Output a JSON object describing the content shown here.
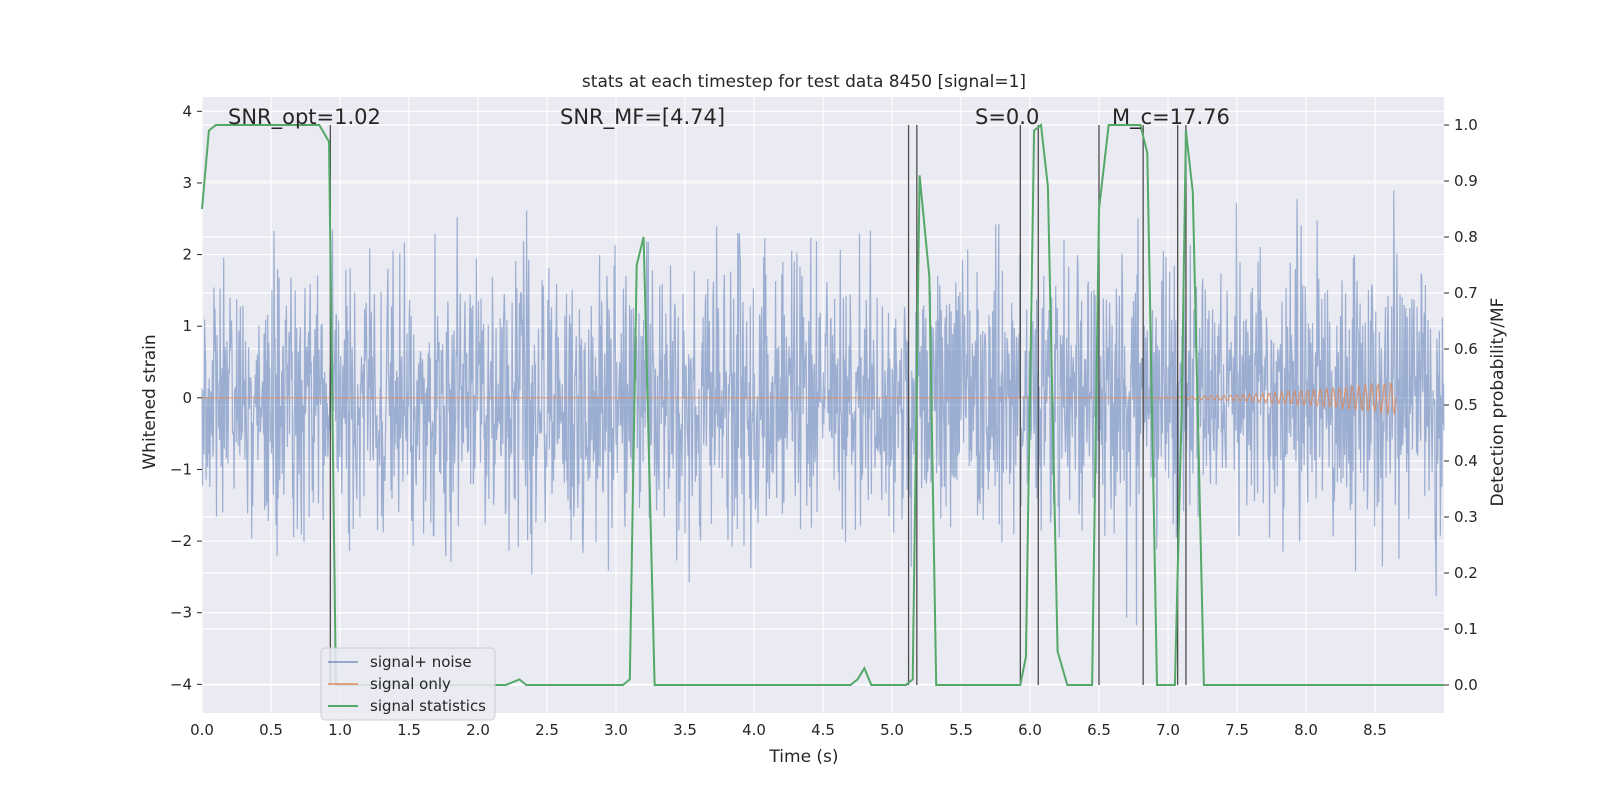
{
  "chart_data": {
    "type": "line",
    "title": "stats at each timestep for test data 8450 [signal=1]",
    "xlabel": "Time (s)",
    "ylabel_left": "Whitened strain",
    "ylabel_right": "Detection probability/MF",
    "xlim": [
      0,
      9
    ],
    "ylim_left": [
      -4.4,
      4.2
    ],
    "ylim_right": [
      -0.05,
      1.05
    ],
    "xticks": [
      "0.0",
      "0.5",
      "1.0",
      "1.5",
      "2.0",
      "2.5",
      "3.0",
      "3.5",
      "4.0",
      "4.5",
      "5.0",
      "5.5",
      "6.0",
      "6.5",
      "7.0",
      "7.5",
      "8.0",
      "8.5"
    ],
    "yticks_left": [
      "−4",
      "−3",
      "−2",
      "−1",
      "0",
      "1",
      "2",
      "3",
      "4"
    ],
    "yticks_right": [
      "0.0",
      "0.1",
      "0.2",
      "0.3",
      "0.4",
      "0.5",
      "0.6",
      "0.7",
      "0.8",
      "0.9",
      "1.0"
    ],
    "grid": true,
    "legend_position": "lower-left",
    "annotations": [
      {
        "id": "snr-opt",
        "text": "SNR_opt=1.02",
        "x": 0.2
      },
      {
        "id": "snr-mf",
        "text": "SNR_MF=[4.74]",
        "x": 2.6
      },
      {
        "id": "s-stat",
        "text": "S=0.0",
        "x": 5.6
      },
      {
        "id": "chirp-mass",
        "text": "M_c=17.76",
        "x": 6.6
      }
    ],
    "series": [
      {
        "name": "signal+ noise",
        "axis": "left",
        "color": "#4c72b0",
        "alpha": 0.5,
        "description_amplitude_std": 1.0,
        "range": [
          0,
          9
        ]
      },
      {
        "name": "signal only",
        "axis": "left",
        "color": "#dd8452",
        "chirp_end": 8.65,
        "chirp_max_amplitude": 0.25
      },
      {
        "name": "signal statistics",
        "axis": "right",
        "color": "#55a868",
        "points": [
          [
            0,
            0.85
          ],
          [
            0.05,
            0.99
          ],
          [
            0.1,
            1.0
          ],
          [
            0.85,
            1.0
          ],
          [
            0.92,
            0.97
          ],
          [
            0.97,
            0.0
          ],
          [
            2.2,
            0.0
          ],
          [
            2.3,
            0.01
          ],
          [
            2.35,
            0.0
          ],
          [
            3.05,
            0.0
          ],
          [
            3.1,
            0.01
          ],
          [
            3.15,
            0.75
          ],
          [
            3.2,
            0.8
          ],
          [
            3.28,
            0.0
          ],
          [
            4.7,
            0.0
          ],
          [
            4.75,
            0.01
          ],
          [
            4.8,
            0.03
          ],
          [
            4.85,
            0.0
          ],
          [
            5.1,
            0.0
          ],
          [
            5.15,
            0.01
          ],
          [
            5.2,
            0.91
          ],
          [
            5.27,
            0.73
          ],
          [
            5.32,
            0.0
          ],
          [
            5.93,
            0.0
          ],
          [
            5.97,
            0.05
          ],
          [
            6.03,
            0.99
          ],
          [
            6.08,
            1.0
          ],
          [
            6.13,
            0.89
          ],
          [
            6.2,
            0.06
          ],
          [
            6.27,
            0.0
          ],
          [
            6.45,
            0.0
          ],
          [
            6.5,
            0.85
          ],
          [
            6.57,
            1.0
          ],
          [
            6.8,
            1.0
          ],
          [
            6.85,
            0.95
          ],
          [
            6.92,
            0.0
          ],
          [
            7.05,
            0.0
          ],
          [
            7.1,
            0.5
          ],
          [
            7.13,
            0.99
          ],
          [
            7.18,
            0.88
          ],
          [
            7.26,
            0.0
          ],
          [
            9,
            0.0
          ]
        ]
      }
    ],
    "vertical_lines_x": [
      0.93,
      5.12,
      5.18,
      5.93,
      6.06,
      6.5,
      6.82,
      7.07,
      7.13
    ]
  },
  "legend": {
    "items": [
      {
        "label": "signal+ noise",
        "color": "#4c72b0"
      },
      {
        "label": "signal only",
        "color": "#dd8452"
      },
      {
        "label": "signal statistics",
        "color": "#55a868"
      }
    ]
  }
}
